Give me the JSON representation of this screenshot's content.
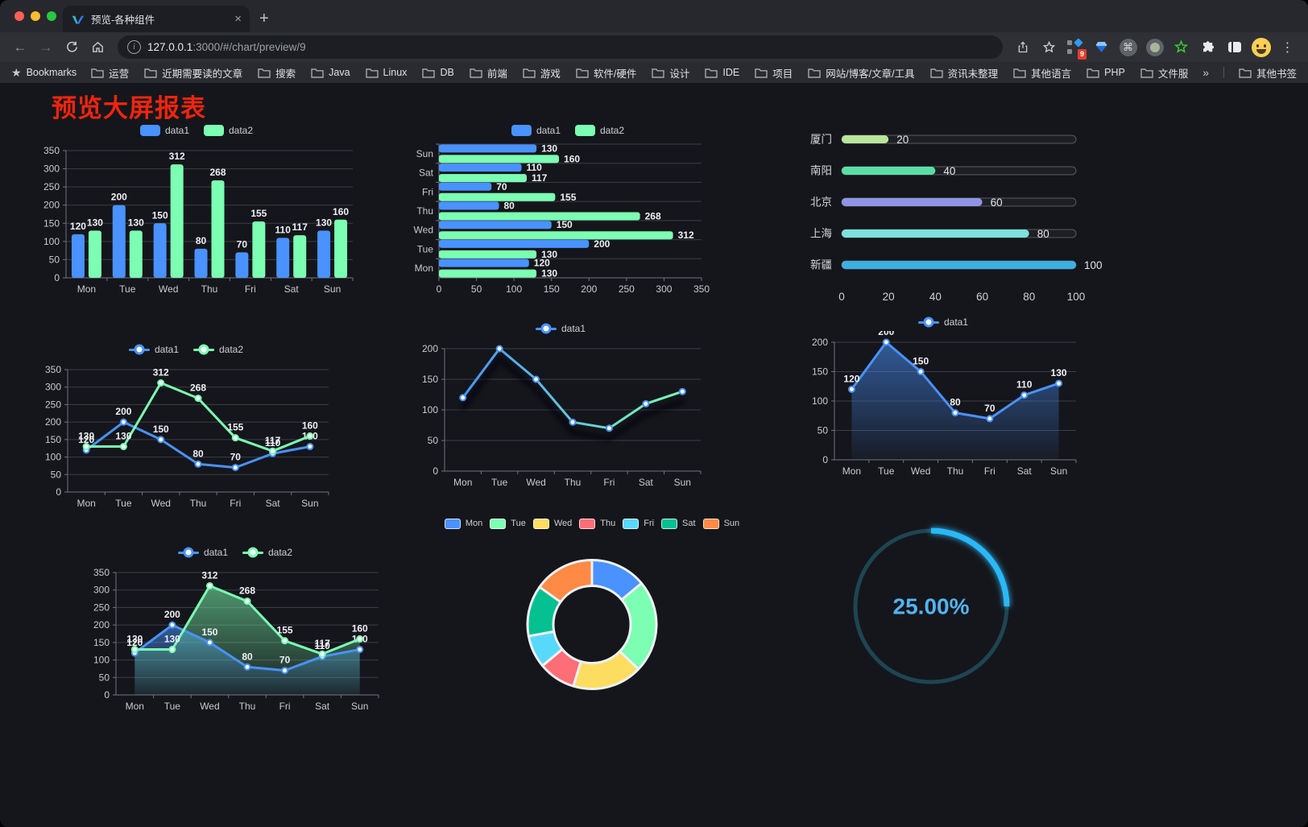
{
  "browser": {
    "tab": {
      "title": "预览-各种组件",
      "close": "×",
      "new_tab": "+"
    },
    "url": {
      "host": "127.0.0.1",
      "rest": ":3000/#/chart/preview/9"
    },
    "nav": {
      "back": "←",
      "forward": "→"
    },
    "bookmarks_label": "Bookmarks",
    "bookmarks": [
      "运营",
      "近期需要读的文章",
      "搜索",
      "Java",
      "Linux",
      "DB",
      "前端",
      "游戏",
      "软件/硬件",
      "设计",
      "IDE",
      "项目",
      "网站/博客/文章/工具",
      "资讯未整理",
      "其他语言",
      "PHP",
      "文件服务器"
    ],
    "bookmarks_overflow": "»",
    "other_bookmarks": "其他书签",
    "extension_badge": "9",
    "icons": [
      "back-icon",
      "forward-icon",
      "reload-icon",
      "home-icon",
      "info-icon",
      "share-icon",
      "star-icon",
      "proxy-extension-icon",
      "gem-extension-icon",
      "command-extension-icon",
      "dot-extension-icon",
      "green-star-extension-icon",
      "extensions-puzzle-icon",
      "sidebar-icon",
      "profile-avatar",
      "menu-dots-icon"
    ]
  },
  "page": {
    "title": "预览大屏报表",
    "title_color": "#f1250e"
  },
  "theme": {
    "background": "#15161b",
    "grid_color": "#3c3d47",
    "axis_color": "#71737d",
    "tick_text": "#c9cad1",
    "value_label": "#eef0f4"
  },
  "chart_data": [
    {
      "name": "grouped-bar",
      "type": "bar",
      "categories": [
        "Mon",
        "Tue",
        "Wed",
        "Thu",
        "Fri",
        "Sat",
        "Sun"
      ],
      "series": [
        {
          "name": "data1",
          "color": "#4992ff",
          "values": [
            120,
            200,
            150,
            80,
            70,
            110,
            130
          ]
        },
        {
          "name": "data2",
          "color": "#7cffb2",
          "values": [
            130,
            130,
            312,
            268,
            155,
            117,
            160
          ]
        }
      ],
      "ylim": [
        0,
        350
      ],
      "ytick_step": 50,
      "labels": true,
      "legend": true
    },
    {
      "name": "horizontal-bar",
      "type": "hbar",
      "categories": [
        "Mon",
        "Tue",
        "Wed",
        "Thu",
        "Fri",
        "Sat",
        "Sun"
      ],
      "series": [
        {
          "name": "data1",
          "color": "#4992ff",
          "values": [
            120,
            200,
            150,
            80,
            70,
            110,
            130
          ]
        },
        {
          "name": "data2",
          "color": "#7cffb2",
          "values": [
            130,
            130,
            312,
            268,
            155,
            117,
            160
          ]
        }
      ],
      "xlim": [
        0,
        350
      ],
      "xtick_step": 50,
      "labels": true,
      "legend": true
    },
    {
      "name": "progress-list",
      "type": "progress",
      "max": 100,
      "xticks": [
        0,
        20,
        40,
        60,
        80,
        100
      ],
      "items": [
        {
          "label": "厦门",
          "value": 20,
          "color": "#b9e59b"
        },
        {
          "label": "南阳",
          "value": 40,
          "color": "#59dfa6"
        },
        {
          "label": "北京",
          "value": 60,
          "color": "#9094e6"
        },
        {
          "label": "上海",
          "value": 80,
          "color": "#7de2de"
        },
        {
          "label": "新疆",
          "value": 100,
          "color": "#3cb0e2"
        }
      ]
    },
    {
      "name": "two-series-line",
      "type": "line",
      "categories": [
        "Mon",
        "Tue",
        "Wed",
        "Thu",
        "Fri",
        "Sat",
        "Sun"
      ],
      "series": [
        {
          "name": "data1",
          "color": "#4992ff",
          "values": [
            120,
            200,
            150,
            80,
            70,
            110,
            130
          ]
        },
        {
          "name": "data2",
          "color": "#7cffb2",
          "values": [
            130,
            130,
            312,
            268,
            155,
            117,
            160
          ]
        }
      ],
      "ylim": [
        0,
        350
      ],
      "ytick_step": 50,
      "labels": true,
      "legend": true
    },
    {
      "name": "gradient-line",
      "type": "line",
      "categories": [
        "Mon",
        "Tue",
        "Wed",
        "Thu",
        "Fri",
        "Sat",
        "Sun"
      ],
      "series": [
        {
          "name": "data1",
          "color": "#4992ff",
          "gradient": [
            "#4992ff",
            "#7cffb2"
          ],
          "values": [
            120,
            200,
            150,
            80,
            70,
            110,
            130
          ]
        }
      ],
      "ylim": [
        0,
        200
      ],
      "ytick_step": 50,
      "labels": false,
      "legend": true,
      "shadow": true
    },
    {
      "name": "area-line",
      "type": "line",
      "area": true,
      "categories": [
        "Mon",
        "Tue",
        "Wed",
        "Thu",
        "Fri",
        "Sat",
        "Sun"
      ],
      "series": [
        {
          "name": "data1",
          "color": "#4992ff",
          "values": [
            120,
            200,
            150,
            80,
            70,
            110,
            130
          ]
        }
      ],
      "ylim": [
        0,
        200
      ],
      "ytick_step": 50,
      "labels": true,
      "legend": true
    },
    {
      "name": "two-series-area-line",
      "type": "line",
      "area": true,
      "categories": [
        "Mon",
        "Tue",
        "Wed",
        "Thu",
        "Fri",
        "Sat",
        "Sun"
      ],
      "series": [
        {
          "name": "data1",
          "color": "#4992ff",
          "values": [
            120,
            200,
            150,
            80,
            70,
            110,
            130
          ]
        },
        {
          "name": "data2",
          "color": "#7cffb2",
          "values": [
            130,
            130,
            312,
            268,
            155,
            117,
            160
          ]
        }
      ],
      "ylim": [
        0,
        350
      ],
      "ytick_step": 50,
      "labels": true,
      "legend": true
    },
    {
      "name": "donut-pie",
      "type": "pie",
      "legend": true,
      "items": [
        {
          "name": "Mon",
          "value": 120,
          "color": "#4992ff"
        },
        {
          "name": "Tue",
          "value": 200,
          "color": "#7cffb2"
        },
        {
          "name": "Wed",
          "value": 150,
          "color": "#fddd60"
        },
        {
          "name": "Thu",
          "value": 80,
          "color": "#ff6e76"
        },
        {
          "name": "Fri",
          "value": 70,
          "color": "#58d9f9"
        },
        {
          "name": "Sat",
          "value": 110,
          "color": "#05c091"
        },
        {
          "name": "Sun",
          "value": 130,
          "color": "#ff8a45"
        }
      ]
    },
    {
      "name": "gauge",
      "type": "gauge",
      "value": 25,
      "display": "25.00%",
      "color": "#2ab8f7",
      "track_color": "#1e4552",
      "text_color": "#53b4f1"
    }
  ]
}
